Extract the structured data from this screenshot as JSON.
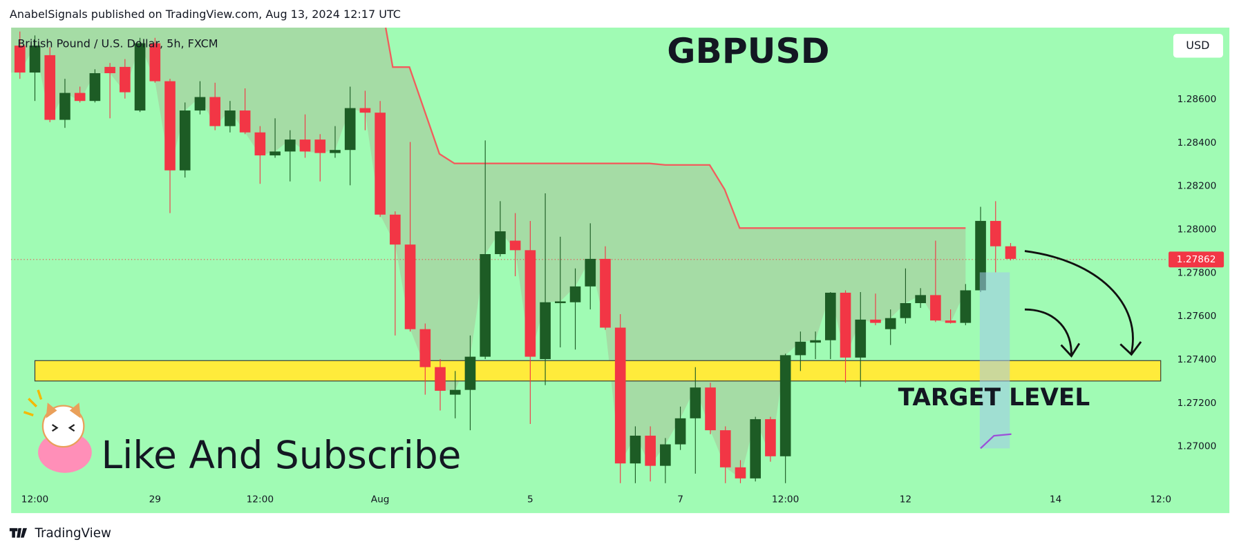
{
  "header": {
    "text": "AnabelSignals published on TradingView.com, Aug 13, 2024 12:17 UTC"
  },
  "chart_data": {
    "type": "candlestick",
    "title": "GBPUSD",
    "subtitle": "British Pound / U.S. Dollar, 5h, FXCM",
    "currency": "USD",
    "up_color": "#1d5c25",
    "down_color": "#f23645",
    "background": "#a0fbb4",
    "x": [
      0,
      1,
      2,
      3,
      4,
      5,
      6,
      7,
      8,
      9,
      10,
      11,
      12,
      13,
      14,
      15,
      16,
      17,
      18,
      19,
      20,
      21,
      22,
      23,
      24,
      25,
      26,
      27,
      28,
      29,
      30,
      31,
      32,
      33,
      34,
      35,
      36,
      37,
      38,
      39,
      40,
      41,
      42,
      43,
      44,
      45,
      46,
      47,
      48,
      49,
      50,
      51,
      52,
      53,
      54,
      55,
      56,
      57,
      58,
      59,
      60,
      61,
      62,
      63,
      64,
      65,
      66
    ],
    "open": [
      1.28848,
      1.28724,
      1.28804,
      1.28506,
      1.2863,
      1.28593,
      1.2875,
      1.2875,
      1.28549,
      1.28859,
      1.28684,
      1.28273,
      1.28549,
      1.28611,
      1.28477,
      1.28549,
      1.28448,
      1.28342,
      1.2836,
      1.28415,
      1.28415,
      1.28353,
      1.28367,
      1.2856,
      1.28539,
      1.28069,
      1.27931,
      1.27541,
      1.27366,
      1.27239,
      1.27261,
      1.27414,
      1.27887,
      1.27949,
      1.27905,
      1.27403,
      1.27661,
      1.27665,
      1.27738,
      1.27865,
      1.27548,
      1.26922,
      1.2705,
      1.26911,
      1.2701,
      1.2713,
      1.27272,
      1.27075,
      1.26904,
      1.26853,
      1.27126,
      1.26955,
      1.27421,
      1.27479,
      1.2749,
      1.27709,
      1.2741,
      1.27585,
      1.27541,
      1.27592,
      1.27661,
      1.27698,
      1.27581,
      1.2757,
      1.2772,
      1.2804,
      1.27923
    ],
    "high": [
      1.28913,
      1.28895,
      1.28841,
      1.28695,
      1.28659,
      1.28739,
      1.28768,
      1.28786,
      1.28884,
      1.28884,
      1.28695,
      1.28586,
      1.28684,
      1.28677,
      1.28593,
      1.28651,
      1.28477,
      1.28513,
      1.28458,
      1.28531,
      1.2844,
      1.28477,
      1.28659,
      1.2864,
      1.28593,
      1.28084,
      1.28404,
      1.27567,
      1.27403,
      1.27348,
      1.27512,
      1.28411,
      1.28131,
      1.28076,
      1.2804,
      1.28167,
      1.27967,
      1.27821,
      1.28029,
      1.27923,
      1.2761,
      1.27093,
      1.27093,
      1.27039,
      1.27184,
      1.27366,
      1.27294,
      1.27093,
      1.26937,
      1.27137,
      1.27137,
      1.27428,
      1.2753,
      1.2753,
      1.27712,
      1.2772,
      1.27712,
      1.27705,
      1.27632,
      1.27821,
      1.2773,
      1.27949,
      1.27632,
      1.27749,
      1.28105,
      1.28131,
      1.27938
    ],
    "low": [
      1.28695,
      1.28593,
      1.28495,
      1.28469,
      1.28586,
      1.28586,
      1.28513,
      1.28604,
      1.28542,
      1.28677,
      1.28076,
      1.2824,
      1.28531,
      1.28458,
      1.28448,
      1.2844,
      1.28211,
      1.28331,
      1.28222,
      1.28331,
      1.28222,
      1.28331,
      1.28204,
      1.28458,
      1.28058,
      1.27512,
      1.2753,
      1.27239,
      1.27166,
      1.2713,
      1.27075,
      1.27403,
      1.27876,
      1.27785,
      1.27104,
      1.27283,
      1.27457,
      1.27447,
      1.27632,
      1.27538,
      1.26831,
      1.26831,
      1.26839,
      1.26831,
      1.26984,
      1.26875,
      1.27057,
      1.26831,
      1.26831,
      1.26839,
      1.2693,
      1.26831,
      1.27348,
      1.27403,
      1.27403,
      1.27294,
      1.27275,
      1.27559,
      1.27468,
      1.27567,
      1.27639,
      1.27574,
      1.27567,
      1.27559,
      1.27712,
      1.27803,
      1.27858
    ],
    "close": [
      1.28724,
      1.28848,
      1.28506,
      1.2863,
      1.28593,
      1.28721,
      1.28721,
      1.28633,
      1.28859,
      1.28684,
      1.28273,
      1.28549,
      1.28611,
      1.28477,
      1.28549,
      1.28448,
      1.28342,
      1.2836,
      1.28415,
      1.2836,
      1.28353,
      1.28367,
      1.2856,
      1.28539,
      1.28069,
      1.27931,
      1.27541,
      1.27366,
      1.27257,
      1.27261,
      1.27414,
      1.27887,
      1.27992,
      1.27905,
      1.27414,
      1.27665,
      1.27669,
      1.27738,
      1.27865,
      1.27548,
      1.26922,
      1.2705,
      1.26911,
      1.2701,
      1.2713,
      1.27272,
      1.27075,
      1.26904,
      1.26853,
      1.27126,
      1.26955,
      1.27421,
      1.27483,
      1.2749,
      1.27709,
      1.2741,
      1.27585,
      1.2757,
      1.27592,
      1.27661,
      1.27698,
      1.27581,
      1.2757,
      1.2772,
      1.2804,
      1.27923,
      1.27865
    ],
    "xlim": [
      -0.58,
      76.47
    ],
    "xticks": [
      {
        "value": 1,
        "label": "12:00"
      },
      {
        "value": 9,
        "label": "29"
      },
      {
        "value": 16,
        "label": "12:00"
      },
      {
        "value": 24,
        "label": "Aug"
      },
      {
        "value": 34,
        "label": "5"
      },
      {
        "value": 44,
        "label": "7"
      },
      {
        "value": 51,
        "label": "12:00"
      },
      {
        "value": 59,
        "label": "12"
      },
      {
        "value": 69,
        "label": "14"
      },
      {
        "value": 76,
        "label": "12:0"
      }
    ],
    "ylim": [
      1.26693,
      1.28931
    ],
    "yticks": [
      {
        "value": 1.286,
        "label": "1.28600"
      },
      {
        "value": 1.284,
        "label": "1.28400"
      },
      {
        "value": 1.282,
        "label": "1.28200"
      },
      {
        "value": 1.28,
        "label": "1.28000"
      },
      {
        "value": 1.278,
        "label": "1.27800"
      },
      {
        "value": 1.276,
        "label": "1.27600"
      },
      {
        "value": 1.274,
        "label": "1.27400"
      },
      {
        "value": 1.272,
        "label": "1.27200"
      },
      {
        "value": 1.27,
        "label": "1.27000"
      }
    ],
    "last_price": 1.27862,
    "last_price_color": "#f23645",
    "indicator": {
      "color": "#f25c5c",
      "x": [
        24.37,
        24.84,
        25.95,
        27.95,
        28.95,
        41.95,
        43.0,
        45.95,
        46.95,
        47.95,
        63.0
      ],
      "values": [
        1.28931,
        1.28749,
        1.28749,
        1.28349,
        1.28305,
        1.28305,
        1.28298,
        1.28298,
        1.28185,
        1.28007,
        1.28007
      ]
    },
    "zone": {
      "x": [
        1,
        76
      ],
      "values": [
        1.27302,
        1.27396
      ],
      "color": "#ffeb3b"
    },
    "annotations": [
      "TARGET LEVEL",
      "Like And Subscribe"
    ]
  },
  "footer": {
    "brand": "TradingView"
  }
}
